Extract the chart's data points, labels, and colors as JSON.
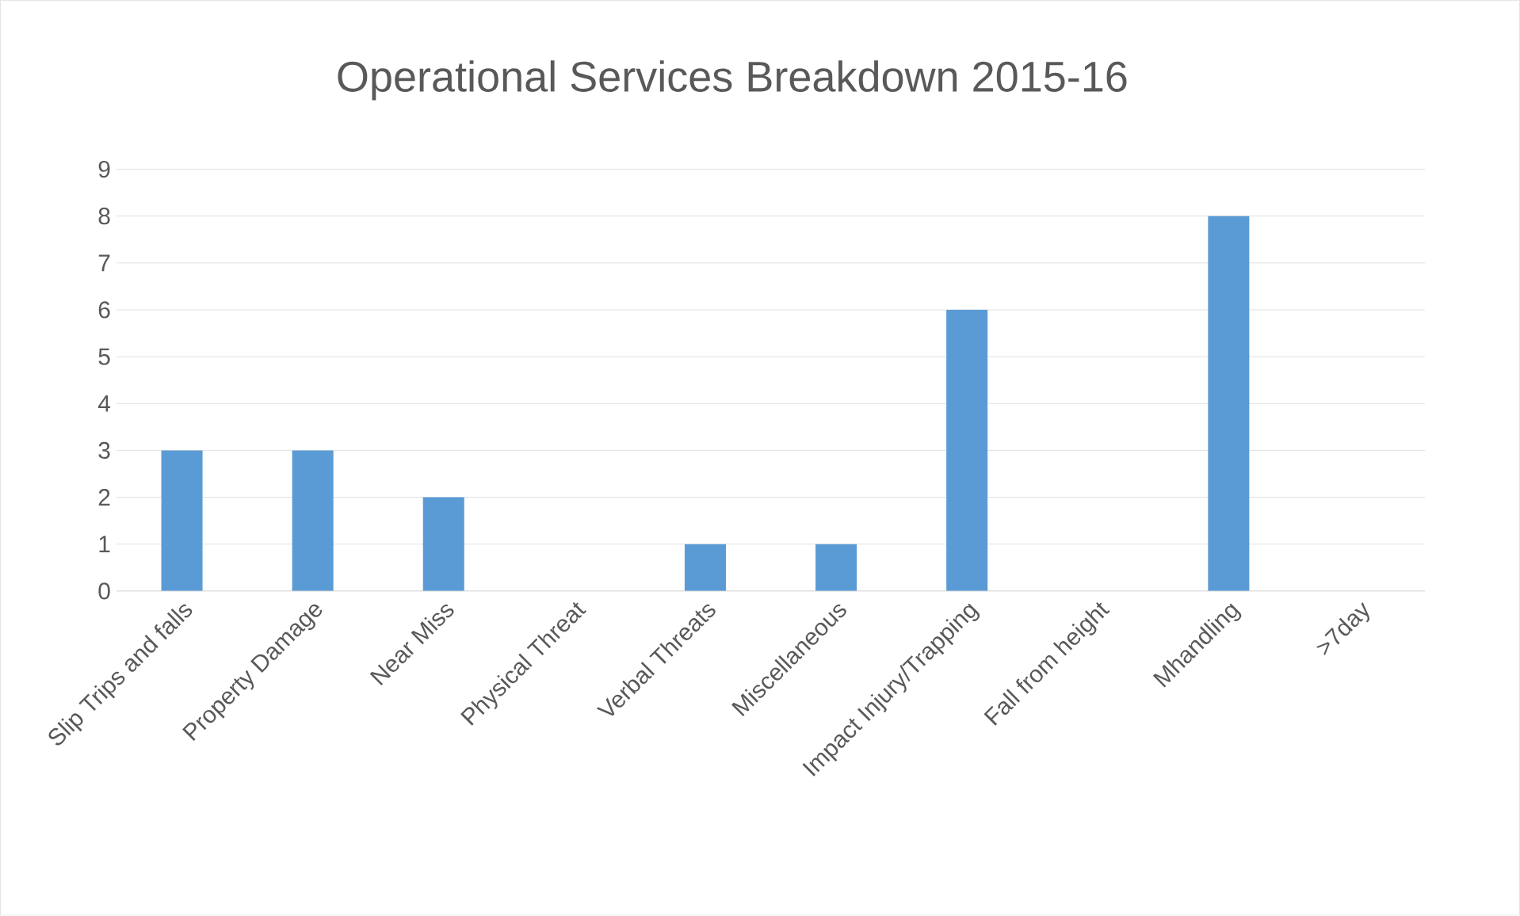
{
  "chart_data": {
    "type": "bar",
    "title": "Operational Services Breakdown 2015-16",
    "categories": [
      "Slip Trips and falls",
      "Property Damage",
      "Near Miss",
      "Physical Threat",
      "Verbal Threats",
      "Miscellaneous",
      "Impact Injury/Trapping",
      "Fall from height",
      "Mhandling",
      ">7day"
    ],
    "values": [
      3,
      3,
      2,
      0,
      1,
      1,
      6,
      0,
      8,
      0
    ],
    "color": "#5b9bd5",
    "ylim": [
      0,
      9
    ],
    "yticks": [
      0,
      1,
      2,
      3,
      4,
      5,
      6,
      7,
      8,
      9
    ],
    "grid": "y"
  }
}
